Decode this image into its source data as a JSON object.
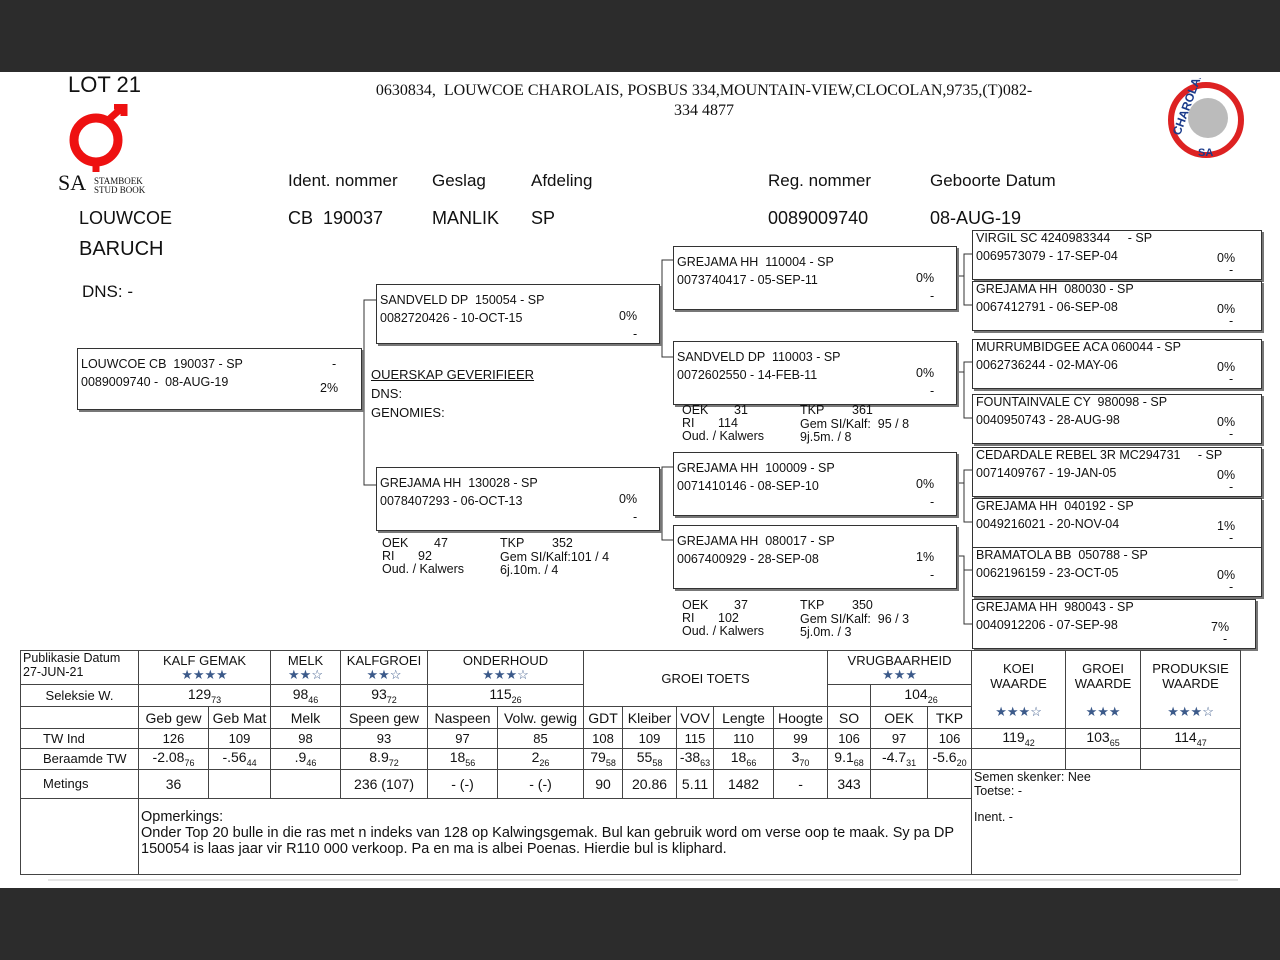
{
  "header": {
    "lot": "LOT 21",
    "address": [
      "0630834,  LOUWCOE CHAROLAIS, POSBUS 334,MOUNTAIN-VIEW,CLOCOLAN,9735,(T)082-",
      "334 4877"
    ],
    "logo_left": [
      "SA",
      "STAMBOEK",
      "STUD BOOK"
    ],
    "logo_right": [
      "CHAROLAIS",
      "SA"
    ]
  },
  "animal": {
    "labels": [
      "Ident. nommer",
      "Geslag",
      "Afdeling",
      "Reg. nommer",
      "Geboorte Datum"
    ],
    "name": [
      "LOUWCOE",
      "BARUCH"
    ],
    "values": [
      "CB  190037",
      "MANLIK",
      "SP",
      "0089009740",
      "08-AUG-19"
    ],
    "dns": "DNS: -"
  },
  "pedigree": [
    {
      "name": "LOUWCOE CB  190037 - SP",
      "reg": "0089009740 -  08-AUG-19",
      "pct": "2%",
      "dash": "-"
    },
    {
      "name": "SANDVELD DP  150054 - SP",
      "reg": "0082720426 - 10-OCT-15",
      "pct": "0%",
      "dash": "-"
    },
    {
      "name": "GREJAMA HH  130028 - SP",
      "reg": "0078407293 - 06-OCT-13",
      "pct": "0%",
      "dash": "-"
    },
    {
      "name": "GREJAMA HH  110004 - SP",
      "reg": "0073740417 - 05-SEP-11",
      "pct": "0%",
      "dash": "-"
    },
    {
      "name": "SANDVELD DP  110003 - SP",
      "reg": "0072602550 - 14-FEB-11",
      "pct": "0%",
      "dash": "-"
    },
    {
      "name": "GREJAMA HH  100009 - SP",
      "reg": "0071410146 - 08-SEP-10",
      "pct": "0%",
      "dash": "-"
    },
    {
      "name": "GREJAMA HH  080017 - SP",
      "reg": "0067400929 - 28-SEP-08",
      "pct": "1%",
      "dash": "-"
    },
    {
      "name": "VIRGIL SC 4240983344     - SP",
      "reg": "0069573079 - 17-SEP-04",
      "pct": "0%",
      "dash": "-"
    },
    {
      "name": "GREJAMA HH  080030 - SP",
      "reg": "0067412791 - 06-SEP-08",
      "pct": "0%",
      "dash": "-"
    },
    {
      "name": "MURRUMBIDGEE ACA 060044 - SP",
      "reg": "0062736244 - 02-MAY-06",
      "pct": "0%",
      "dash": "-"
    },
    {
      "name": "FOUNTAINVALE CY  980098 - SP",
      "reg": "0040950743 - 28-AUG-98",
      "pct": "0%",
      "dash": "-"
    },
    {
      "name": "CEDARDALE REBEL 3R MC294731     - SP",
      "reg": "0071409767 - 19-JAN-05",
      "pct": "0%",
      "dash": "-"
    },
    {
      "name": "GREJAMA HH  040192 - SP",
      "reg": "0049216021 - 20-NOV-04",
      "pct": "1%",
      "dash": "-"
    },
    {
      "name": "BRAMATOLA BB  050788 - SP",
      "reg": "0062196159 - 23-OCT-05",
      "pct": "0%",
      "dash": "-"
    },
    {
      "name": "GREJAMA HH  980043 - SP",
      "reg": "0040912206 - 07-SEP-98",
      "pct": "7%",
      "dash": "-"
    }
  ],
  "verification": [
    "OUERSKAP GEVERIFIEER",
    "DNS:",
    "GENOMIES:"
  ],
  "stats": [
    {
      "oek_label": "OEK",
      "oek": "31",
      "tkp_label": "TKP",
      "tkp": "361",
      "ri_label": "RI",
      "ri": "114",
      "gem": "Gem SI/Kalf:  95 / 8",
      "oud_label": "Oud. / Kalwers",
      "oud": "9j.5m. / 8"
    },
    {
      "oek_label": "OEK",
      "oek": "47",
      "tkp_label": "TKP",
      "tkp": "352",
      "ri_label": "RI",
      "ri": "92",
      "gem": "Gem SI/Kalf:101 / 4",
      "oud_label": "Oud. / Kalwers",
      "oud": "6j.10m. / 4"
    },
    {
      "oek_label": "OEK",
      "oek": "37",
      "tkp_label": "TKP",
      "tkp": "350",
      "ri_label": "RI",
      "ri": "102",
      "gem": "Gem SI/Kalf:  96 / 3",
      "oud_label": "Oud. / Kalwers",
      "oud": "5j.0m. / 3"
    }
  ],
  "table": {
    "pub_label": "Publikasie Datum",
    "pub_date": "27-JUN-21",
    "groups": [
      {
        "name": "KALF GEMAK",
        "stars": "★★★★"
      },
      {
        "name": "MELK",
        "stars": "★★☆"
      },
      {
        "name": "KALFGROEI",
        "stars": "★★☆"
      },
      {
        "name": "ONDERHOUD",
        "stars": "★★★☆"
      },
      {
        "name": "GROEI TOETS"
      },
      {
        "name": "VRUGBAARHEID",
        "stars": "★★★"
      },
      {
        "name": "KOEI WAARDE",
        "stars": "★★★☆"
      },
      {
        "name": "GROEI WAARDE",
        "stars": "★★★"
      },
      {
        "name": "PRODUKSIE WAARDE",
        "stars": "★★★☆"
      }
    ],
    "sel_label": "Seleksie W.",
    "sel": [
      {
        "v": "129",
        "acc": "73"
      },
      {
        "v": "98",
        "acc": "46"
      },
      {
        "v": "93",
        "acc": "72"
      },
      {
        "v": "115",
        "acc": "26"
      },
      {
        "v": "104",
        "acc": "26"
      }
    ],
    "heads": [
      "Geb gew",
      "Geb Mat",
      "Melk",
      "Speen gew",
      "Naspeen",
      "Volw. gewig",
      "GDT",
      "Kleiber",
      "VOV",
      "Lengte",
      "Hoogte",
      "SO",
      "OEK",
      "TKP"
    ],
    "rows": [
      {
        "label": "TW Ind",
        "cells": [
          {
            "v": "126"
          },
          {
            "v": "109"
          },
          {
            "v": "98"
          },
          {
            "v": "93"
          },
          {
            "v": "97"
          },
          {
            "v": "85"
          },
          {
            "v": "108"
          },
          {
            "v": "109"
          },
          {
            "v": "115"
          },
          {
            "v": "110"
          },
          {
            "v": "99"
          },
          {
            "v": "106"
          },
          {
            "v": "97"
          },
          {
            "v": "106"
          }
        ]
      },
      {
        "label": "Beraamde TW",
        "cells": [
          {
            "v": "-2.08",
            "acc": "76"
          },
          {
            "v": "-.56",
            "acc": "44"
          },
          {
            "v": ".9",
            "acc": "46"
          },
          {
            "v": "8.9",
            "acc": "72"
          },
          {
            "v": "18",
            "acc": "56"
          },
          {
            "v": "2",
            "acc": "26"
          },
          {
            "v": "79",
            "acc": "58"
          },
          {
            "v": "55",
            "acc": "58"
          },
          {
            "v": "-38",
            "acc": "63"
          },
          {
            "v": "18",
            "acc": "66"
          },
          {
            "v": "3",
            "acc": "70"
          },
          {
            "v": "9.1",
            "acc": "68"
          },
          {
            "v": "-4.7",
            "acc": "31"
          },
          {
            "v": "-5.6",
            "acc": "20"
          }
        ]
      },
      {
        "label": "Metings",
        "cells": [
          {
            "v": "36"
          },
          null,
          null,
          {
            "v": "236 (107)"
          },
          {
            "v": "-  (-)"
          },
          {
            "v": "-  (-)"
          },
          {
            "v": "90"
          },
          {
            "v": "20.86"
          },
          {
            "v": "5.11"
          },
          {
            "v": "1482"
          },
          {
            "v": "-"
          },
          {
            "v": "343"
          },
          null,
          null
        ]
      }
    ],
    "waarde": [
      {
        "v": "119",
        "acc": "42"
      },
      {
        "v": "103",
        "acc": "65"
      },
      {
        "v": "114",
        "acc": "47"
      }
    ],
    "semen": [
      "Semen skenker: Nee",
      "Toetse: -",
      "Inent. -"
    ],
    "opm_label": "Opmerkings:",
    "opm": "Onder Top 20 bulle in die ras met n indeks van 128 op Kalwingsgemak. Bul kan gebruik word om verse oop te maak. Sy pa DP 150054 is laas jaar vir R110 000 verkoop. Pa en ma is albei Poenas. Hierdie bul is kliphard."
  }
}
